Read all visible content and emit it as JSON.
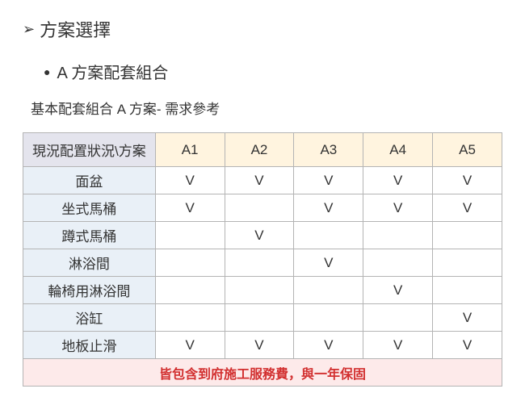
{
  "heading1": {
    "marker": "➢",
    "text": "方案選擇"
  },
  "heading2": {
    "marker": "●",
    "text": "A 方案配套組合"
  },
  "subheading": "基本配套組合 A 方案-  需求參考",
  "table": {
    "corner_label": "現況配置狀況\\方案",
    "columns": [
      "A1",
      "A2",
      "A3",
      "A4",
      "A5"
    ],
    "rows": [
      {
        "label": "面盆",
        "cells": [
          "V",
          "V",
          "V",
          "V",
          "V"
        ]
      },
      {
        "label": "坐式馬桶",
        "cells": [
          "V",
          "",
          "V",
          "V",
          "V"
        ]
      },
      {
        "label": "蹲式馬桶",
        "cells": [
          "",
          "V",
          "",
          "",
          ""
        ]
      },
      {
        "label": "淋浴間",
        "cells": [
          "",
          "",
          "V",
          "",
          ""
        ]
      },
      {
        "label": "輪椅用淋浴間",
        "cells": [
          "",
          "",
          "",
          "V",
          ""
        ]
      },
      {
        "label": "浴缸",
        "cells": [
          "",
          "",
          "",
          "",
          "V"
        ]
      },
      {
        "label": "地板止滑",
        "cells": [
          "V",
          "V",
          "V",
          "V",
          "V"
        ]
      }
    ],
    "footer": "皆包含到府施工服務費，與一年保固"
  },
  "colors": {
    "text": "#333333",
    "border": "#b4b4b4",
    "corner_bg": "#e4e4ed",
    "header_bg": "#fff4df",
    "rowlabel_bg": "#e9f0f7",
    "cell_bg": "#ffffff",
    "footer_bg": "#fdeaea",
    "footer_text": "#d22f2f"
  },
  "fonts": {
    "heading1_size": 22,
    "heading2_size": 20,
    "subheading_size": 17,
    "table_header_size": 17,
    "table_cell_size": 17,
    "footer_size": 16
  }
}
